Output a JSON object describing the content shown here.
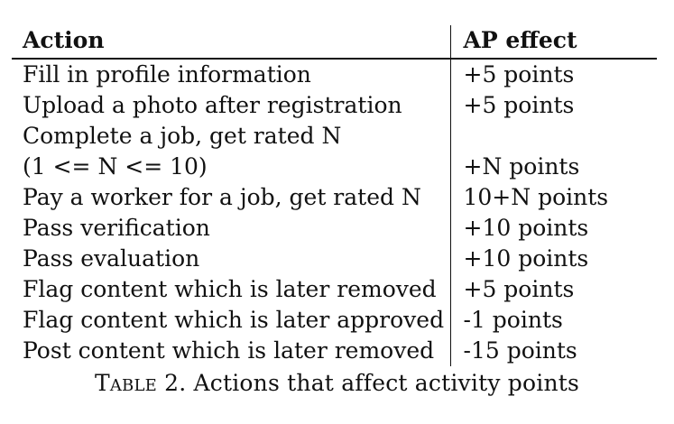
{
  "table": {
    "headers": {
      "action": "Action",
      "effect": "AP effect"
    },
    "rows": [
      {
        "action": "Fill in profile information",
        "effect": "+5 points"
      },
      {
        "action": "Upload a photo after registration",
        "effect": "+5 points"
      },
      {
        "action": "Complete a job, get rated N",
        "effect": ""
      },
      {
        "action": "(1 <= N <= 10)",
        "effect": "+N points"
      },
      {
        "action": "Pay a worker for a job, get rated N",
        "effect": "10+N points"
      },
      {
        "action": "Pass verification",
        "effect": "+10 points"
      },
      {
        "action": "Pass evaluation",
        "effect": "+10 points"
      },
      {
        "action": "Flag content which is later removed",
        "effect": "+5 points"
      },
      {
        "action": "Flag content which is later approved",
        "effect": "-1 points"
      },
      {
        "action": "Post content which is later removed",
        "effect": "-15 points"
      }
    ]
  },
  "caption": {
    "label": "Table 2.",
    "text": "Actions that affect activity points"
  }
}
